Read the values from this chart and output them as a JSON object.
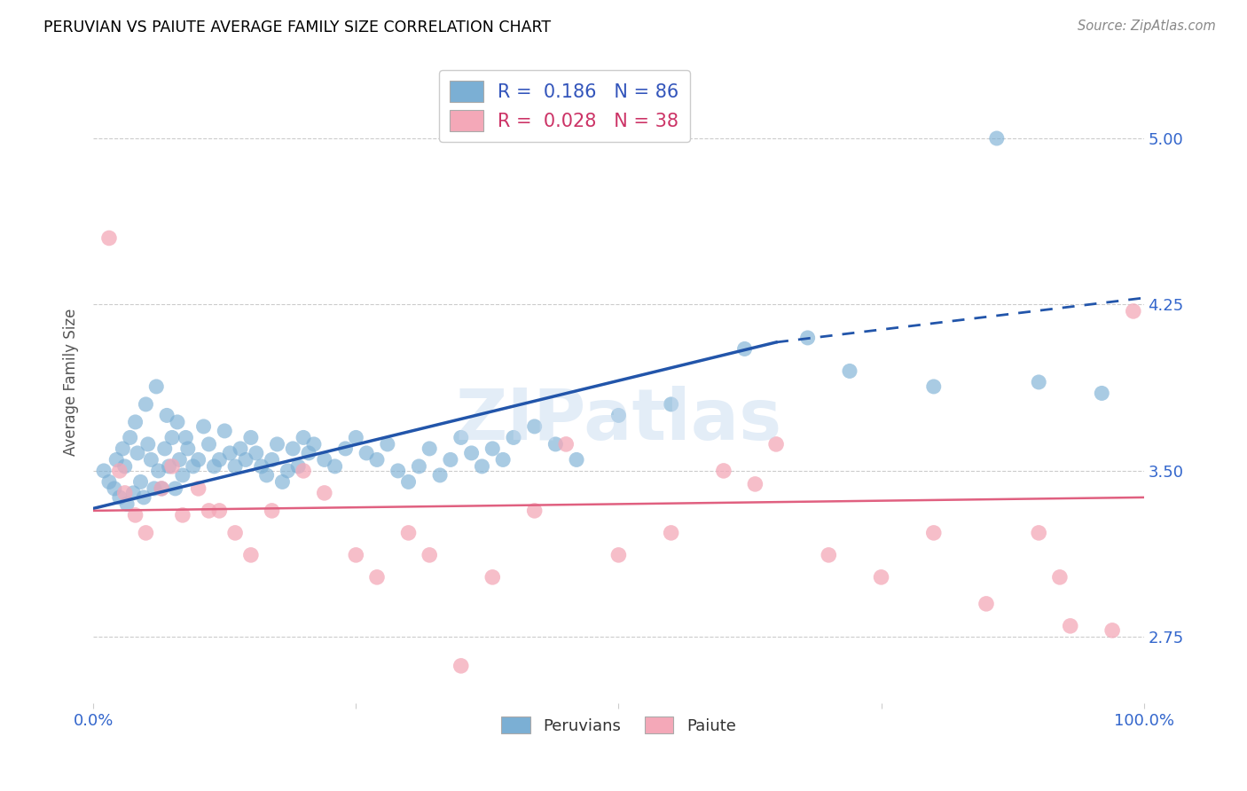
{
  "title": "PERUVIAN VS PAIUTE AVERAGE FAMILY SIZE CORRELATION CHART",
  "source": "Source: ZipAtlas.com",
  "ylabel": "Average Family Size",
  "xlim": [
    0.0,
    100.0
  ],
  "ylim": [
    2.45,
    5.35
  ],
  "yticks": [
    2.75,
    3.5,
    4.25,
    5.0
  ],
  "blue_color": "#7BAFD4",
  "pink_color": "#F4A8B8",
  "blue_line_color": "#2255AA",
  "pink_line_color": "#E06080",
  "R_blue": 0.186,
  "N_blue": 86,
  "R_pink": 0.028,
  "N_pink": 38,
  "legend_label_blue": "Peruvians",
  "legend_label_pink": "Paiute",
  "watermark": "ZIPatlas",
  "blue_line_x0": 0,
  "blue_line_y0": 3.33,
  "blue_line_x1": 65,
  "blue_line_y1": 4.08,
  "blue_dash_x0": 65,
  "blue_dash_y0": 4.08,
  "blue_dash_x1": 100,
  "blue_dash_y1": 4.28,
  "pink_line_x0": 0,
  "pink_line_y0": 3.32,
  "pink_line_x1": 100,
  "pink_line_y1": 3.38,
  "blue_points_x": [
    1.0,
    1.5,
    2.0,
    2.2,
    2.5,
    2.8,
    3.0,
    3.2,
    3.5,
    3.8,
    4.0,
    4.2,
    4.5,
    4.8,
    5.0,
    5.2,
    5.5,
    5.8,
    6.0,
    6.2,
    6.5,
    6.8,
    7.0,
    7.2,
    7.5,
    7.8,
    8.0,
    8.2,
    8.5,
    8.8,
    9.0,
    9.5,
    10.0,
    10.5,
    11.0,
    11.5,
    12.0,
    12.5,
    13.0,
    13.5,
    14.0,
    14.5,
    15.0,
    15.5,
    16.0,
    16.5,
    17.0,
    17.5,
    18.0,
    18.5,
    19.0,
    19.5,
    20.0,
    20.5,
    21.0,
    22.0,
    23.0,
    24.0,
    25.0,
    26.0,
    27.0,
    28.0,
    29.0,
    30.0,
    31.0,
    32.0,
    33.0,
    34.0,
    35.0,
    36.0,
    37.0,
    38.0,
    39.0,
    40.0,
    42.0,
    44.0,
    46.0,
    50.0,
    55.0,
    62.0,
    68.0,
    72.0,
    80.0,
    86.0,
    90.0,
    96.0
  ],
  "blue_points_y": [
    3.5,
    3.45,
    3.42,
    3.55,
    3.38,
    3.6,
    3.52,
    3.35,
    3.65,
    3.4,
    3.72,
    3.58,
    3.45,
    3.38,
    3.8,
    3.62,
    3.55,
    3.42,
    3.88,
    3.5,
    3.42,
    3.6,
    3.75,
    3.52,
    3.65,
    3.42,
    3.72,
    3.55,
    3.48,
    3.65,
    3.6,
    3.52,
    3.55,
    3.7,
    3.62,
    3.52,
    3.55,
    3.68,
    3.58,
    3.52,
    3.6,
    3.55,
    3.65,
    3.58,
    3.52,
    3.48,
    3.55,
    3.62,
    3.45,
    3.5,
    3.6,
    3.52,
    3.65,
    3.58,
    3.62,
    3.55,
    3.52,
    3.6,
    3.65,
    3.58,
    3.55,
    3.62,
    3.5,
    3.45,
    3.52,
    3.6,
    3.48,
    3.55,
    3.65,
    3.58,
    3.52,
    3.6,
    3.55,
    3.65,
    3.7,
    3.62,
    3.55,
    3.75,
    3.8,
    4.05,
    4.1,
    3.95,
    3.88,
    5.0,
    3.9,
    3.85
  ],
  "pink_points_x": [
    1.5,
    2.5,
    3.0,
    4.0,
    5.0,
    6.5,
    7.5,
    8.5,
    10.0,
    11.0,
    12.0,
    13.5,
    15.0,
    17.0,
    20.0,
    22.0,
    25.0,
    27.0,
    30.0,
    32.0,
    35.0,
    38.0,
    42.0,
    45.0,
    50.0,
    55.0,
    60.0,
    63.0,
    65.0,
    70.0,
    75.0,
    80.0,
    85.0,
    90.0,
    92.0,
    93.0,
    97.0,
    99.0
  ],
  "pink_points_y": [
    4.55,
    3.5,
    3.4,
    3.3,
    3.22,
    3.42,
    3.52,
    3.3,
    3.42,
    3.32,
    3.32,
    3.22,
    3.12,
    3.32,
    3.5,
    3.4,
    3.12,
    3.02,
    3.22,
    3.12,
    2.62,
    3.02,
    3.32,
    3.62,
    3.12,
    3.22,
    3.5,
    3.44,
    3.62,
    3.12,
    3.02,
    3.22,
    2.9,
    3.22,
    3.02,
    2.8,
    2.78,
    4.22
  ]
}
